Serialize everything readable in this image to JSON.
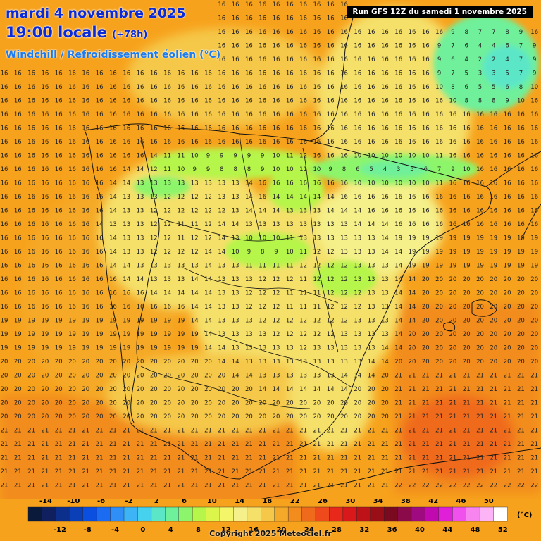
{
  "header": {
    "date_line": "mardi 4 novembre 2025",
    "time_line": "19:00 locale",
    "lead_time": "(+78h)",
    "parameter": "Windchill / Refroidissement éolien (°C)",
    "run_label": "Run GFS 12Z du samedi 1 novembre 2025"
  },
  "legend": {
    "upper_ticks": [
      "-14",
      "-10",
      "-6",
      "-2",
      "2",
      "6",
      "10",
      "14",
      "18",
      "22",
      "26",
      "30",
      "34",
      "38",
      "42",
      "46",
      "50"
    ],
    "lower_ticks": [
      "-12",
      "-8",
      "-4",
      "0",
      "4",
      "8",
      "12",
      "16",
      "20",
      "24",
      "28",
      "32",
      "36",
      "40",
      "44",
      "48",
      "52"
    ],
    "unit": "(°C)",
    "colors": [
      "#0a1a3a",
      "#10205e",
      "#0c2f8c",
      "#0a3fb8",
      "#0b4fe0",
      "#1c6cf2",
      "#2f8ff7",
      "#3cb4f5",
      "#46d2ee",
      "#5ce6c8",
      "#6ff09a",
      "#8cf56b",
      "#b6f54a",
      "#dcf54a",
      "#f5f56a",
      "#f5f08a",
      "#f5e06a",
      "#f5c84a",
      "#f5a928",
      "#f28c1c",
      "#f06a1c",
      "#ee4a1c",
      "#e8281a",
      "#d8181a",
      "#bc1218",
      "#9a0e18",
      "#7a0a20",
      "#8a0a4a",
      "#a00a80",
      "#c00ab0",
      "#e020d8",
      "#f050ec",
      "#f884f0",
      "#fcb4f6",
      "#ffffff"
    ]
  },
  "copyright": "Copyright 2025 Meteociel.fr"
}
